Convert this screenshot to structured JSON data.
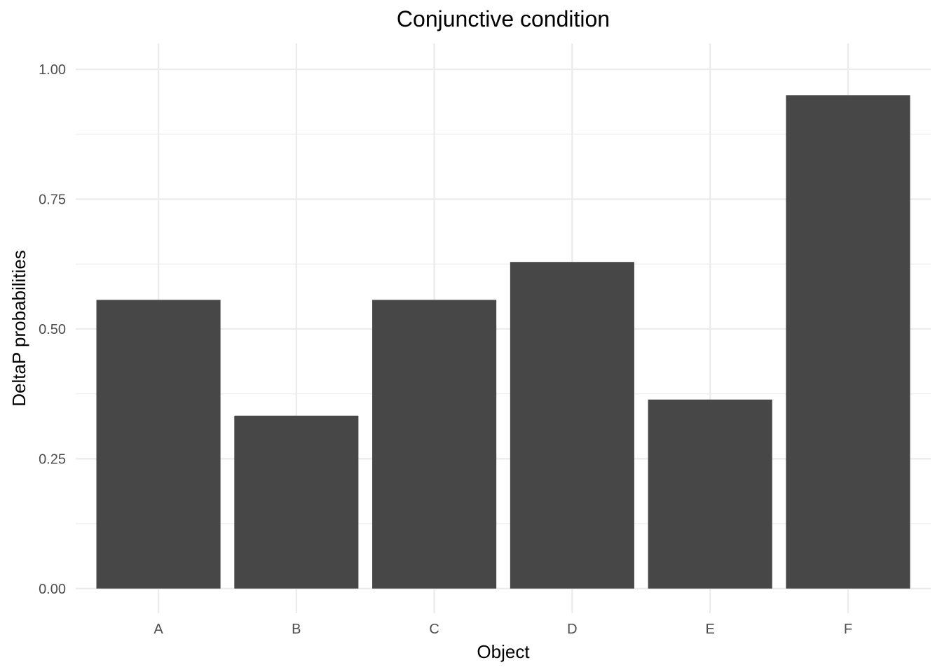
{
  "chart_data": {
    "type": "bar",
    "title": "Conjunctive condition",
    "xlabel": "Object",
    "ylabel": "DeltaP probabilities",
    "categories": [
      "A",
      "B",
      "C",
      "D",
      "E",
      "F"
    ],
    "values": [
      0.556,
      0.333,
      0.556,
      0.629,
      0.364,
      0.95
    ],
    "ylim": [
      -0.0475,
      1.05
    ],
    "yticks": [
      0,
      0.25,
      0.5,
      0.75,
      1.0
    ],
    "ytick_labels": [
      "0.00",
      "0.25",
      "0.50",
      "0.75",
      "1.00"
    ],
    "yminor": [
      0.125,
      0.375,
      0.625,
      0.875
    ],
    "grid": true,
    "legend": "none",
    "colors": {
      "bar": "#474747",
      "grid": "#ebebeb",
      "tick_text": "#4d4d4d",
      "background": "#ffffff"
    }
  }
}
